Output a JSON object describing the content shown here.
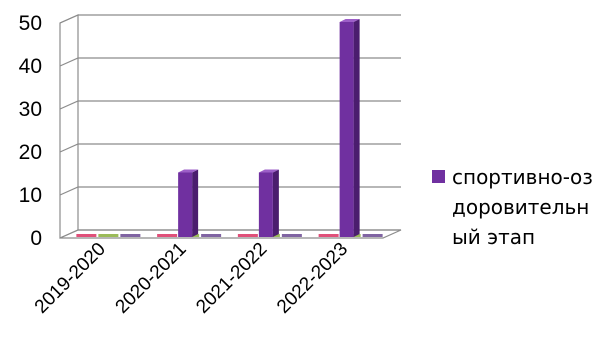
{
  "chart_data": {
    "type": "bar",
    "style": "3d-column",
    "categories": [
      "2019-2020",
      "2020-2021",
      "2021-2022",
      "2022-2023"
    ],
    "series": [
      {
        "name": "спортивно-оздоровительный этап",
        "values": [
          0,
          15,
          15,
          50
        ],
        "color": "#7030A0"
      }
    ],
    "empty_markers": [
      "#E0507A",
      "#9BBB59",
      "#8064A2"
    ],
    "yticks": [
      0,
      10,
      20,
      30,
      40,
      50
    ],
    "ylim": [
      0,
      50
    ],
    "title": "",
    "xlabel": "",
    "ylabel": "",
    "grid": true,
    "legend": "right",
    "colors": {
      "bar_front": "#7030A0",
      "bar_side": "#4B1D6E",
      "bar_top": "#9D5FC8",
      "wall_grid": "#8C8C8C",
      "text": "#000000"
    }
  },
  "legend": {
    "label": "спортивно-оздоровительный этап"
  }
}
